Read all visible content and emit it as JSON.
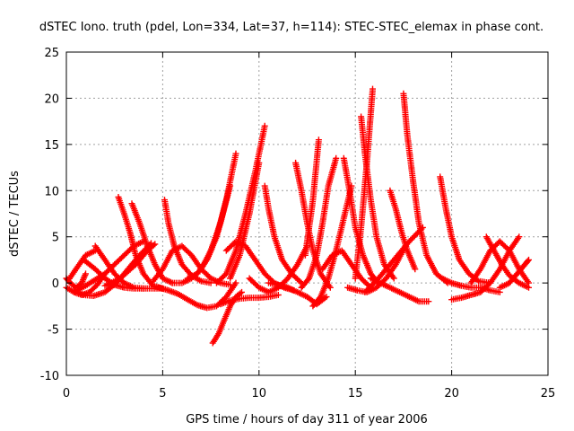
{
  "chart_data": {
    "type": "scatter",
    "title": "dSTEC Iono. truth (pdel, Lon=334, Lat=37, h=114): STEC-STEC_elemax in phase cont.",
    "xlabel": "GPS time / hours of day 311 of year 2006",
    "ylabel": "dSTEC  / TECUs",
    "xlim": [
      0,
      25
    ],
    "ylim": [
      -10,
      25
    ],
    "xticks": [
      0,
      5,
      10,
      15,
      20,
      25
    ],
    "yticks": [
      -10,
      -5,
      0,
      5,
      10,
      15,
      20,
      25
    ],
    "grid": true,
    "marker": "+",
    "color": "#ff0000",
    "series": [
      {
        "x": [
          0.0,
          0.2,
          0.5,
          0.8,
          1.0
        ],
        "y": [
          0.5,
          0.0,
          -0.5,
          0.0,
          1.0
        ]
      },
      {
        "x": [
          0.0,
          0.4,
          0.8,
          1.2,
          1.6,
          2.0
        ],
        "y": [
          -0.5,
          -1.0,
          -1.3,
          -1.0,
          -0.2,
          1.0
        ]
      },
      {
        "x": [
          0.1,
          0.5,
          1.0,
          1.5
        ],
        "y": [
          0.3,
          1.5,
          3.0,
          3.5
        ]
      },
      {
        "x": [
          0.4,
          0.9,
          1.4,
          2.0,
          2.6,
          3.2,
          3.8,
          4.4
        ],
        "y": [
          -0.8,
          -1.3,
          -1.4,
          -1.0,
          0.0,
          1.5,
          3.0,
          4.3
        ]
      },
      {
        "x": [
          0.4,
          1.0,
          2.0,
          3.0,
          3.5,
          4.0
        ],
        "y": [
          -1.0,
          -0.3,
          1.0,
          3.0,
          4.0,
          4.5
        ]
      },
      {
        "x": [
          1.5,
          2.0,
          2.5,
          3.0,
          3.5,
          4.0
        ],
        "y": [
          4.0,
          2.5,
          1.0,
          0.0,
          -0.5,
          -0.6
        ]
      },
      {
        "x": [
          2.7,
          3.0,
          3.3,
          3.6,
          4.0,
          4.5,
          5.0
        ],
        "y": [
          9.3,
          7.5,
          5.5,
          3.0,
          1.0,
          -0.3,
          -0.6
        ]
      },
      {
        "x": [
          3.4,
          3.8,
          4.2,
          4.6,
          5.0,
          5.5
        ],
        "y": [
          8.6,
          6.5,
          4.0,
          2.0,
          0.5,
          0.0
        ]
      },
      {
        "x": [
          0.9,
          1.5,
          2.0,
          2.5,
          3.0,
          3.5,
          4.0,
          4.5,
          5.0
        ],
        "y": [
          2.5,
          1.5,
          0.5,
          -0.2,
          -0.5,
          -0.6,
          -0.6,
          -0.6,
          -0.6
        ]
      },
      {
        "x": [
          2.0,
          2.8,
          3.6,
          4.2,
          4.6
        ],
        "y": [
          -0.3,
          0.5,
          2.0,
          3.5,
          4.2
        ]
      },
      {
        "x": [
          5.1,
          5.3,
          5.6,
          6.0,
          6.5,
          7.0,
          7.5
        ],
        "y": [
          9.0,
          6.5,
          4.0,
          2.0,
          0.8,
          0.2,
          0.0
        ]
      },
      {
        "x": [
          4.5,
          5.0,
          5.5,
          6.0,
          6.5,
          7.0,
          7.5,
          8.0,
          8.5
        ],
        "y": [
          0.2,
          1.5,
          3.5,
          4.0,
          3.0,
          1.5,
          0.5,
          0.0,
          -0.2
        ]
      },
      {
        "x": [
          4.8,
          5.3,
          5.8,
          6.3,
          6.8,
          7.3,
          7.8,
          8.3,
          8.8
        ],
        "y": [
          -0.5,
          -0.8,
          -1.2,
          -1.8,
          -2.4,
          -2.7,
          -2.5,
          -1.5,
          0.0
        ]
      },
      {
        "x": [
          5.5,
          6.0,
          6.5,
          7.0,
          7.5,
          8.0,
          8.5
        ],
        "y": [
          0.0,
          0.0,
          0.5,
          1.5,
          3.5,
          6.5,
          10.5
        ]
      },
      {
        "x": [
          6.3,
          6.8,
          7.3,
          7.8,
          8.3,
          8.8
        ],
        "y": [
          0.5,
          1.0,
          2.5,
          5.0,
          9.0,
          14.0
        ]
      },
      {
        "x": [
          7.6,
          7.9,
          8.2,
          8.5,
          8.8,
          9.1
        ],
        "y": [
          -6.5,
          -5.5,
          -4.0,
          -2.5,
          -1.5,
          -1.0
        ]
      },
      {
        "x": [
          8.0,
          8.5,
          9.0,
          9.5,
          10.0,
          10.5,
          11.0
        ],
        "y": [
          -2.3,
          -1.9,
          -1.7,
          -1.6,
          -1.6,
          -1.5,
          -1.3
        ]
      },
      {
        "x": [
          8.3,
          8.8,
          9.3,
          9.8,
          10.3,
          10.8,
          11.3,
          11.8
        ],
        "y": [
          3.5,
          4.5,
          4.0,
          2.5,
          1.0,
          0.0,
          -0.5,
          -0.8
        ]
      },
      {
        "x": [
          7.8,
          8.3,
          8.8,
          9.3,
          9.8,
          10.3
        ],
        "y": [
          0.0,
          1.0,
          3.5,
          7.5,
          12.0,
          17.0
        ]
      },
      {
        "x": [
          8.5,
          9.0,
          9.5,
          10.0
        ],
        "y": [
          0.5,
          3.0,
          7.5,
          13.0
        ]
      },
      {
        "x": [
          10.3,
          10.5,
          10.8,
          11.2,
          11.7,
          12.2
        ],
        "y": [
          10.5,
          8.0,
          5.0,
          2.5,
          1.0,
          0.0
        ]
      },
      {
        "x": [
          10.5,
          11.0,
          11.5,
          12.0,
          12.5,
          13.0,
          13.5
        ],
        "y": [
          0.0,
          -0.2,
          -0.5,
          -1.0,
          -1.5,
          -2.3,
          -1.5
        ]
      },
      {
        "x": [
          9.5,
          10.0,
          10.5,
          11.0,
          11.5,
          12.0,
          12.5
        ],
        "y": [
          0.5,
          -0.5,
          -1.0,
          -0.5,
          0.5,
          2.0,
          4.0
        ]
      },
      {
        "x": [
          11.9,
          12.2,
          12.5,
          12.8,
          13.2,
          13.7
        ],
        "y": [
          13.0,
          10.0,
          6.5,
          3.5,
          1.0,
          -0.5
        ]
      },
      {
        "x": [
          12.2,
          12.6,
          13.0,
          13.3,
          13.6,
          14.0
        ],
        "y": [
          -0.5,
          0.5,
          3.0,
          6.5,
          10.5,
          13.5
        ]
      },
      {
        "x": [
          12.4,
          12.8,
          13.1
        ],
        "y": [
          3.0,
          9.0,
          15.5
        ]
      },
      {
        "x": [
          12.8,
          13.2,
          13.6,
          14.0,
          14.4,
          14.8
        ],
        "y": [
          -2.5,
          -1.5,
          0.5,
          3.5,
          7.0,
          10.5
        ]
      },
      {
        "x": [
          14.4,
          14.7,
          15.0,
          15.4,
          15.8,
          16.2
        ],
        "y": [
          13.5,
          10.0,
          6.0,
          3.0,
          1.0,
          0.0
        ]
      },
      {
        "x": [
          13.3,
          13.8,
          14.3,
          14.8,
          15.3,
          15.8
        ],
        "y": [
          1.5,
          3.0,
          3.5,
          2.0,
          0.5,
          -0.5
        ]
      },
      {
        "x": [
          15.0,
          15.3,
          15.6,
          15.9
        ],
        "y": [
          0.5,
          6.0,
          13.0,
          21.0
        ]
      },
      {
        "x": [
          15.3,
          15.5,
          15.8,
          16.1,
          16.5,
          17.0
        ],
        "y": [
          18.0,
          14.0,
          9.0,
          5.0,
          2.0,
          0.5
        ]
      },
      {
        "x": [
          14.6,
          15.1,
          15.6,
          16.1,
          16.6,
          17.1,
          17.6
        ],
        "y": [
          -0.5,
          -0.8,
          -1.0,
          -0.5,
          0.5,
          2.0,
          4.0
        ]
      },
      {
        "x": [
          15.8,
          16.3,
          16.8,
          17.3,
          17.8,
          18.3,
          18.8
        ],
        "y": [
          0.5,
          0.0,
          -0.5,
          -1.0,
          -1.5,
          -2.0,
          -2.0
        ]
      },
      {
        "x": [
          17.5,
          17.7,
          18.0,
          18.3,
          18.7,
          19.2,
          19.8
        ],
        "y": [
          20.5,
          16.0,
          11.0,
          6.5,
          3.0,
          1.0,
          0.0
        ]
      },
      {
        "x": [
          16.8,
          17.1,
          17.4,
          17.7,
          18.1
        ],
        "y": [
          10.0,
          8.0,
          5.5,
          3.5,
          1.5
        ]
      },
      {
        "x": [
          15.5,
          16.2,
          17.0,
          17.8,
          18.5
        ],
        "y": [
          -1.0,
          0.5,
          2.5,
          4.5,
          6.0
        ]
      },
      {
        "x": [
          19.4,
          19.7,
          20.0,
          20.4,
          20.9,
          21.4,
          22.0
        ],
        "y": [
          11.5,
          8.0,
          5.0,
          2.5,
          1.0,
          0.2,
          0.0
        ]
      },
      {
        "x": [
          19.5,
          20.0,
          20.5,
          21.0,
          21.5,
          22.0,
          22.5
        ],
        "y": [
          0.5,
          0.0,
          -0.3,
          -0.5,
          -0.5,
          -0.8,
          -1.0
        ]
      },
      {
        "x": [
          20.0,
          20.5,
          21.0,
          21.5,
          22.0,
          22.5,
          23.0,
          23.5
        ],
        "y": [
          -1.8,
          -1.6,
          -1.3,
          -1.0,
          0.0,
          1.5,
          3.5,
          5.0
        ]
      },
      {
        "x": [
          21.0,
          21.5,
          22.0,
          22.5,
          23.0,
          23.5,
          24.0
        ],
        "y": [
          0.0,
          1.5,
          3.5,
          4.5,
          3.5,
          1.5,
          0.0
        ]
      },
      {
        "x": [
          21.8,
          22.2,
          22.6,
          23.0,
          23.5,
          24.0
        ],
        "y": [
          5.0,
          3.5,
          2.0,
          0.8,
          0.0,
          -0.5
        ]
      },
      {
        "x": [
          22.5,
          23.0,
          23.4,
          23.8,
          24.0
        ],
        "y": [
          -0.5,
          0.0,
          1.0,
          2.0,
          2.5
        ]
      }
    ]
  }
}
